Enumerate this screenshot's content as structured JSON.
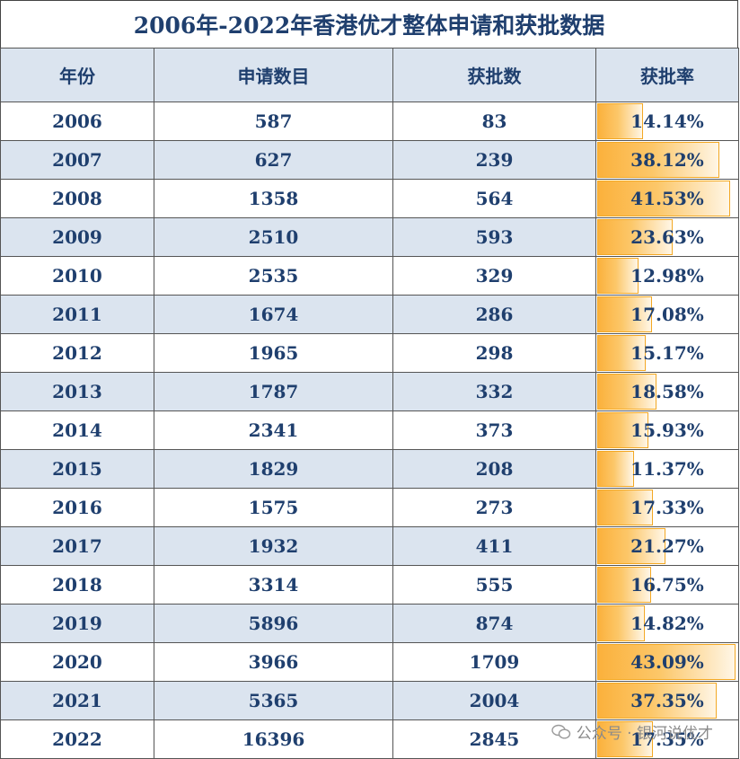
{
  "title": "2006年-2022年香港优才整体申请和获批数据",
  "headers": [
    "年份",
    "申请数目",
    "获批数",
    "获批率"
  ],
  "rows": [
    {
      "year": "2006",
      "applications": "587",
      "approved": "83",
      "rate": "14.14%",
      "rate_value": 14.14
    },
    {
      "year": "2007",
      "applications": "627",
      "approved": "239",
      "rate": "38.12%",
      "rate_value": 38.12
    },
    {
      "year": "2008",
      "applications": "1358",
      "approved": "564",
      "rate": "41.53%",
      "rate_value": 41.53
    },
    {
      "year": "2009",
      "applications": "2510",
      "approved": "593",
      "rate": "23.63%",
      "rate_value": 23.63
    },
    {
      "year": "2010",
      "applications": "2535",
      "approved": "329",
      "rate": "12.98%",
      "rate_value": 12.98
    },
    {
      "year": "2011",
      "applications": "1674",
      "approved": "286",
      "rate": "17.08%",
      "rate_value": 17.08
    },
    {
      "year": "2012",
      "applications": "1965",
      "approved": "298",
      "rate": "15.17%",
      "rate_value": 15.17
    },
    {
      "year": "2013",
      "applications": "1787",
      "approved": "332",
      "rate": "18.58%",
      "rate_value": 18.58
    },
    {
      "year": "2014",
      "applications": "2341",
      "approved": "373",
      "rate": "15.93%",
      "rate_value": 15.93
    },
    {
      "year": "2015",
      "applications": "1829",
      "approved": "208",
      "rate": "11.37%",
      "rate_value": 11.37
    },
    {
      "year": "2016",
      "applications": "1575",
      "approved": "273",
      "rate": "17.33%",
      "rate_value": 17.33
    },
    {
      "year": "2017",
      "applications": "1932",
      "approved": "411",
      "rate": "21.27%",
      "rate_value": 21.27
    },
    {
      "year": "2018",
      "applications": "3314",
      "approved": "555",
      "rate": "16.75%",
      "rate_value": 16.75
    },
    {
      "year": "2019",
      "applications": "5896",
      "approved": "874",
      "rate": "14.82%",
      "rate_value": 14.82
    },
    {
      "year": "2020",
      "applications": "3966",
      "approved": "1709",
      "rate": "43.09%",
      "rate_value": 43.09
    },
    {
      "year": "2021",
      "applications": "5365",
      "approved": "2004",
      "rate": "37.35%",
      "rate_value": 37.35
    },
    {
      "year": "2022",
      "applications": "16396",
      "approved": "2845",
      "rate": "17.35%",
      "rate_value": 17.35
    }
  ],
  "rate_bar_max": 43.09,
  "colors": {
    "header_bg": "#dbe4ef",
    "text": "#1f3f6e",
    "bar": "#fbb13c"
  },
  "watermark": "公众号 · 银河说优才"
}
